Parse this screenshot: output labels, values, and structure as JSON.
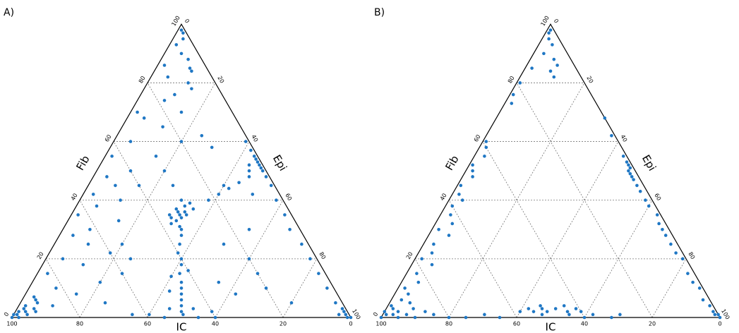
{
  "chart_data": [
    {
      "type": "ternary",
      "title": "A)",
      "fib_label": "Fib",
      "epi_label": "Epi",
      "ic_label": "IC",
      "fib_ticks": [
        0,
        20,
        40,
        60,
        80,
        100
      ],
      "epi_ticks": [
        0,
        20,
        40,
        60,
        80,
        100
      ],
      "ic_ticks": [
        0,
        20,
        40,
        60,
        80,
        100
      ],
      "grid": true,
      "color": "#1f77c4",
      "fib": [
        98,
        97,
        95,
        93,
        90,
        88,
        85,
        84,
        86,
        82,
        80,
        78,
        76,
        74,
        70,
        68,
        60,
        55,
        50,
        48,
        45,
        42,
        40,
        38,
        35,
        33,
        30,
        28,
        25,
        22,
        20,
        18,
        15,
        12,
        10,
        8,
        6,
        5,
        4,
        3,
        2,
        1,
        2,
        1,
        3,
        0,
        0,
        1,
        4,
        2,
        5,
        7,
        35,
        36,
        34,
        37,
        33,
        35,
        38,
        32,
        36,
        34,
        39,
        31,
        40,
        35,
        37,
        25,
        22,
        20,
        18,
        15,
        12,
        10,
        8,
        6,
        4,
        2,
        28,
        30,
        14,
        16,
        9,
        3,
        1,
        0,
        0,
        1,
        2,
        0,
        1,
        3,
        40,
        42,
        44,
        46,
        48,
        50,
        45,
        52,
        55,
        54,
        53,
        52,
        51,
        50,
        57,
        60,
        48,
        45,
        40,
        35,
        30,
        25,
        20,
        15,
        10,
        5,
        2,
        1,
        0,
        0,
        3,
        1,
        50,
        45,
        55,
        60,
        42,
        30,
        20,
        25,
        15,
        10,
        5,
        12,
        8,
        20,
        25,
        15,
        45,
        65,
        62,
        58,
        70
      ],
      "epi": [
        1,
        2,
        3,
        2,
        5,
        8,
        10,
        11,
        2,
        5,
        12,
        14,
        10,
        8,
        2,
        5,
        5,
        2,
        10,
        4,
        8,
        3,
        12,
        6,
        2,
        15,
        8,
        4,
        10,
        18,
        5,
        12,
        3,
        20,
        8,
        15,
        4,
        25,
        10,
        2,
        1,
        1,
        3,
        4,
        5,
        2,
        0,
        0,
        2,
        6,
        5,
        3,
        32,
        31,
        33,
        30,
        32,
        34,
        32,
        31,
        33,
        30,
        33,
        34,
        30,
        29,
        35,
        37,
        38,
        40,
        41,
        42,
        44,
        45,
        46,
        47,
        48,
        49,
        36,
        35,
        40,
        44,
        42,
        45,
        50,
        55,
        45,
        40,
        58,
        60,
        35,
        52,
        38,
        40,
        42,
        44,
        46,
        45,
        40,
        44,
        44,
        45,
        46,
        47,
        48,
        49,
        42,
        39,
        51,
        54,
        58,
        63,
        67,
        73,
        78,
        83,
        88,
        93,
        97,
        98,
        99,
        100,
        96,
        96,
        20,
        25,
        15,
        20,
        50,
        55,
        60,
        50,
        65,
        70,
        80,
        55,
        62,
        25,
        20,
        25,
        15,
        12,
        25,
        30,
        15
      ]
    },
    {
      "type": "ternary",
      "title": "B)",
      "fib_label": "Fib",
      "epi_label": "Epi",
      "ic_label": "IC",
      "fib_ticks": [
        0,
        20,
        40,
        60,
        80,
        100
      ],
      "epi_ticks": [
        0,
        20,
        40,
        60,
        80,
        100
      ],
      "ic_ticks": [
        0,
        20,
        40,
        60,
        80,
        100
      ],
      "grid": true,
      "color": "#1f77c4",
      "fib": [
        98,
        97,
        95,
        93,
        90,
        88,
        86,
        84,
        82,
        85,
        80,
        76,
        73,
        60,
        58,
        55,
        52,
        50,
        48,
        45,
        42,
        40,
        38,
        35,
        32,
        30,
        28,
        25,
        22,
        20,
        18,
        15,
        12,
        10,
        8,
        6,
        5,
        4,
        3,
        2,
        1,
        0,
        2,
        1,
        3,
        0,
        1,
        68,
        62,
        55,
        53,
        52,
        51,
        50,
        49,
        48,
        47,
        45,
        43,
        40,
        38,
        35,
        32,
        30,
        28,
        25,
        22,
        20,
        15,
        12,
        10,
        6,
        4,
        2,
        1,
        0,
        1,
        0,
        1,
        0,
        2,
        3,
        2,
        3,
        4,
        2,
        3,
        1,
        4,
        2,
        1,
        3,
        2,
        0,
        1,
        0,
        1,
        0,
        2,
        0,
        1
      ],
      "epi": [
        1,
        1,
        2,
        4,
        3,
        7,
        9,
        8,
        10,
        2,
        1,
        1,
        2,
        1,
        2,
        3,
        1,
        2,
        3,
        1,
        2,
        4,
        2,
        3,
        5,
        2,
        6,
        3,
        4,
        2,
        6,
        3,
        5,
        2,
        4,
        3,
        6,
        1,
        2,
        4,
        1,
        0,
        0,
        3,
        8,
        5,
        7,
        32,
        37,
        44,
        46,
        47,
        48,
        48,
        49,
        50,
        51,
        53,
        55,
        58,
        60,
        64,
        66,
        68,
        70,
        73,
        76,
        79,
        83,
        86,
        89,
        92,
        95,
        97,
        98,
        100,
        99,
        20,
        15,
        25,
        40,
        42,
        44,
        46,
        45,
        48,
        50,
        47,
        52,
        54,
        55,
        56,
        58,
        60,
        62,
        10,
        30,
        35,
        12,
        68,
        70
      ]
    }
  ]
}
